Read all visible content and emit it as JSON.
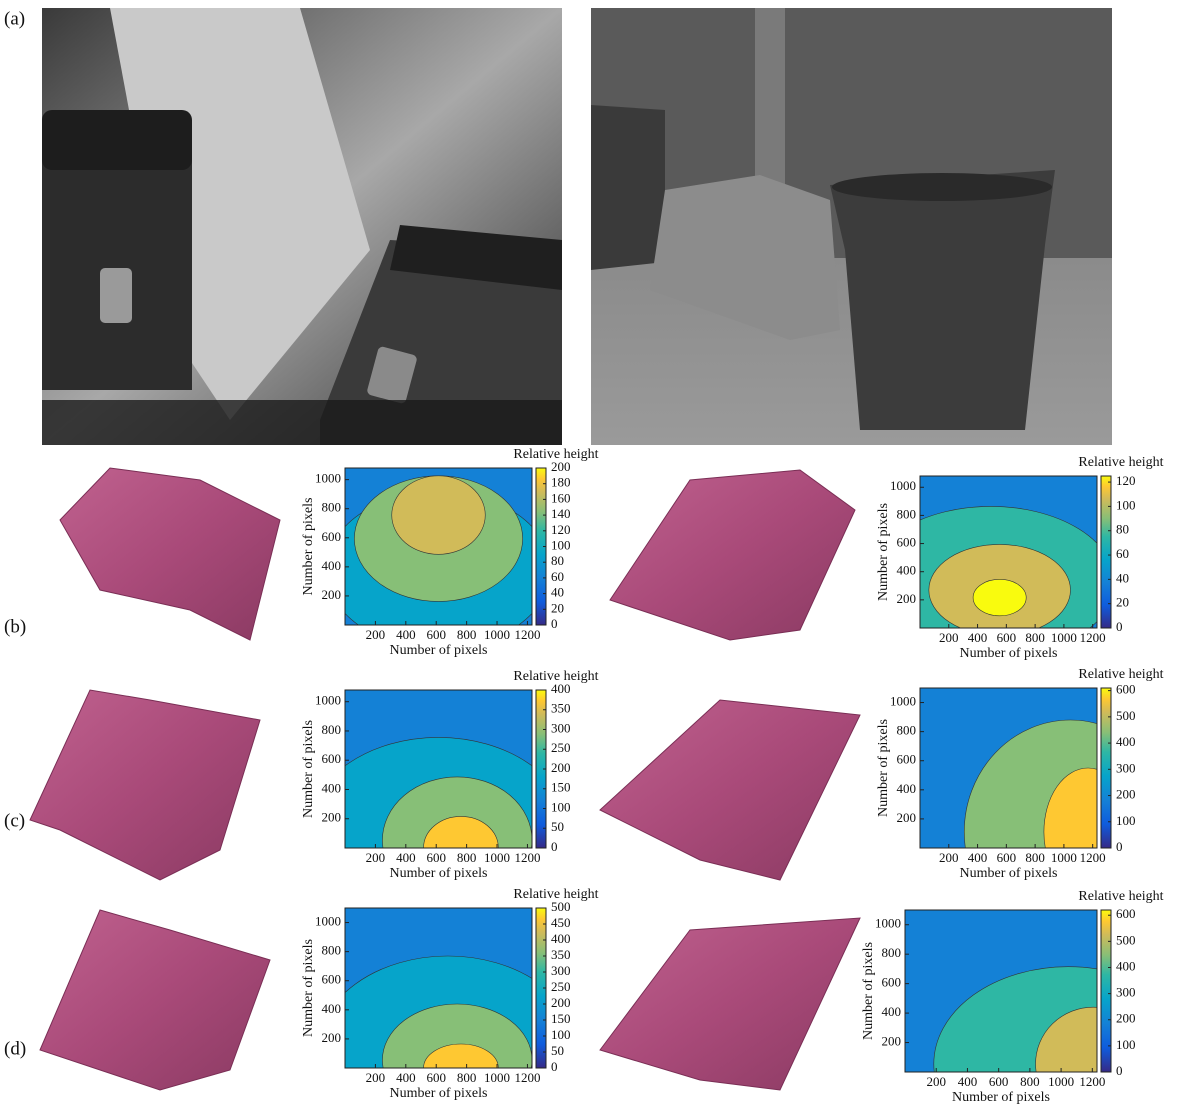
{
  "figure": {
    "panels": [
      {
        "label": "(a)"
      },
      {
        "label": "(b)",
        "plots": [
          {
            "title": "Relative height",
            "xlabel": "Number of pixels",
            "ylabel": "Number of pixels",
            "xlim": [
              0,
              1230
            ],
            "xticks": [
              200,
              400,
              600,
              800,
              1000,
              1200
            ],
            "ylim": [
              0,
              1080
            ],
            "yticks": [
              200,
              400,
              600,
              800,
              1000
            ],
            "clim": [
              0,
              200
            ],
            "cticks": [
              0,
              20,
              40,
              60,
              80,
              100,
              120,
              140,
              160,
              180,
              200
            ]
          },
          {
            "title": "Relative height",
            "xlabel": "Number of pixels",
            "ylabel": "Number of pixels",
            "xlim": [
              0,
              1230
            ],
            "xticks": [
              200,
              400,
              600,
              800,
              1000,
              1200
            ],
            "ylim": [
              0,
              1080
            ],
            "yticks": [
              200,
              400,
              600,
              800,
              1000
            ],
            "clim": [
              0,
              125
            ],
            "cticks": [
              0,
              20,
              40,
              60,
              80,
              100,
              120
            ]
          }
        ]
      },
      {
        "label": "(c)",
        "plots": [
          {
            "title": "Relative height",
            "xlabel": "Number of pixels",
            "ylabel": "Number of pixels",
            "xlim": [
              0,
              1230
            ],
            "xticks": [
              200,
              400,
              600,
              800,
              1000,
              1200
            ],
            "ylim": [
              0,
              1080
            ],
            "yticks": [
              200,
              400,
              600,
              800,
              1000
            ],
            "clim": [
              0,
              400
            ],
            "cticks": [
              0,
              50,
              100,
              150,
              200,
              250,
              300,
              350,
              400
            ]
          },
          {
            "title": "Relative height",
            "xlabel": "Number of pixels",
            "ylabel": "Number of pixels",
            "xlim": [
              0,
              1230
            ],
            "xticks": [
              200,
              400,
              600,
              800,
              1000,
              1200
            ],
            "ylim": [
              0,
              1100
            ],
            "yticks": [
              200,
              400,
              600,
              800,
              1000
            ],
            "clim": [
              0,
              610
            ],
            "cticks": [
              0,
              100,
              200,
              300,
              400,
              500,
              600
            ]
          }
        ]
      },
      {
        "label": "(d)",
        "plots": [
          {
            "title": "Relative height",
            "xlabel": "Number of pixels",
            "ylabel": "Number of pixels",
            "xlim": [
              0,
              1230
            ],
            "xticks": [
              200,
              400,
              600,
              800,
              1000,
              1200
            ],
            "ylim": [
              0,
              1100
            ],
            "yticks": [
              200,
              400,
              600,
              800,
              1000
            ],
            "clim": [
              0,
              500
            ],
            "cticks": [
              0,
              50,
              100,
              150,
              200,
              250,
              300,
              350,
              400,
              450,
              500
            ]
          },
          {
            "title": "Relative height",
            "xlabel": "Number of pixels",
            "ylabel": "Number of pixels",
            "xlim": [
              0,
              1230
            ],
            "xticks": [
              200,
              400,
              600,
              800,
              1000,
              1200
            ],
            "ylim": [
              0,
              1100
            ],
            "yticks": [
              200,
              400,
              600,
              800,
              1000
            ],
            "clim": [
              0,
              620
            ],
            "cticks": [
              0,
              100,
              200,
              300,
              400,
              500,
              600
            ]
          }
        ]
      }
    ]
  }
}
